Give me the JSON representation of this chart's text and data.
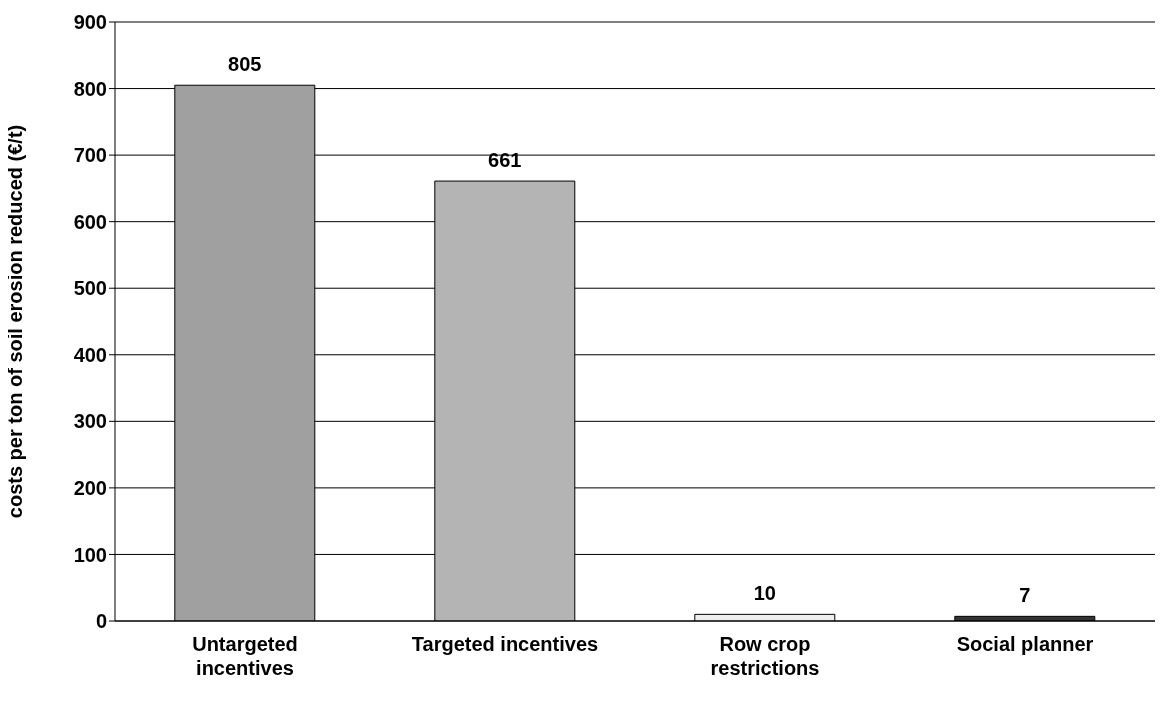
{
  "chart_data": {
    "type": "bar",
    "ylabel": "costs per ton of soil erosion reduced (€/t)",
    "categories": [
      "Untargeted incentives",
      "Targeted incentives",
      "Row crop restrictions",
      "Social planner"
    ],
    "values": [
      805,
      661,
      10,
      7
    ],
    "colors": [
      "#a0a0a0",
      "#b4b4b4",
      "#eeeeee",
      "#333333"
    ],
    "ylim": [
      0,
      900
    ],
    "yticks": [
      0,
      100,
      200,
      300,
      400,
      500,
      600,
      700,
      800,
      900
    ],
    "grid": "y",
    "data_labels": true,
    "legend": false
  }
}
